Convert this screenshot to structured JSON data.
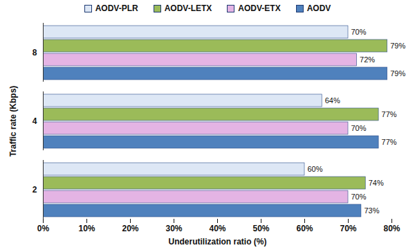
{
  "chart_data": {
    "type": "bar",
    "orientation": "horizontal",
    "x_label": "Underutilization ratio (%)",
    "y_label": "Traffic rate (Kbps)",
    "categories": [
      "2",
      "4",
      "8"
    ],
    "series": [
      {
        "name": "AODV-PLR",
        "color": "#dde7f5",
        "values": [
          60,
          64,
          70
        ],
        "value_labels": [
          "60%",
          "64%",
          "70%"
        ]
      },
      {
        "name": "AODV-LETX",
        "color": "#9bbb59",
        "values": [
          74,
          77,
          79
        ],
        "value_labels": [
          "74%",
          "77%",
          "79%"
        ]
      },
      {
        "name": "AODV-ETX",
        "color": "#e4b4e4",
        "values": [
          70,
          70,
          72
        ],
        "value_labels": [
          "70%",
          "70%",
          "72%"
        ]
      },
      {
        "name": "AODV",
        "color": "#4f81bd",
        "values": [
          73,
          77,
          79
        ],
        "value_labels": [
          "73%",
          "77%",
          "79%"
        ]
      }
    ],
    "xlim": [
      0,
      80
    ],
    "xticks": [
      {
        "value": 0,
        "label": "0%"
      },
      {
        "value": 10,
        "label": "10%"
      },
      {
        "value": 20,
        "label": "20%"
      },
      {
        "value": 30,
        "label": "30%"
      },
      {
        "value": 40,
        "label": "40%"
      },
      {
        "value": 50,
        "label": "50%"
      },
      {
        "value": 60,
        "label": "60%"
      },
      {
        "value": 70,
        "label": "70%"
      },
      {
        "value": 80,
        "label": "80%"
      }
    ],
    "grid": false,
    "legend": "top",
    "data_labels": true
  }
}
